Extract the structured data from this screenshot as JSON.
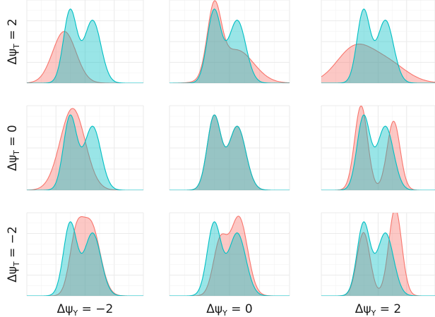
{
  "chart_data": {
    "type": "area",
    "layout": {
      "rows": 3,
      "cols": 3
    },
    "row_labels": [
      "ΔψT = 2",
      "ΔψT = 0",
      "ΔψT = −2"
    ],
    "row_label_parts": [
      {
        "pre": "Δψ",
        "sub": "T",
        "post": " = 2"
      },
      {
        "pre": "Δψ",
        "sub": "T",
        "post": " = 0"
      },
      {
        "pre": "Δψ",
        "sub": "T",
        "post": " = −2"
      }
    ],
    "col_labels": [
      "ΔψY = −2",
      "ΔψY = 0",
      "ΔψY = 2"
    ],
    "col_label_parts": [
      {
        "pre": "Δψ",
        "sub": "Y",
        "post": " = −2"
      },
      {
        "pre": "Δψ",
        "sub": "Y",
        "post": " = 0"
      },
      {
        "pre": "Δψ",
        "sub": "Y",
        "post": " = 2"
      }
    ],
    "colors": {
      "red": "#F8766D",
      "teal": "#00BFC4"
    },
    "fill_opacity": 0.4,
    "grid": true,
    "x_range": [
      -3.5,
      3.5
    ],
    "y_range": [
      0,
      0.55
    ],
    "panels": [
      {
        "row": 0,
        "col": 0,
        "series": [
          {
            "color": "red",
            "components": [
              [
                -1.25,
                0.7,
                0.6
              ]
            ]
          },
          {
            "color": "teal",
            "components": [
              [
                -0.9,
                0.4,
                0.48
              ],
              [
                0.45,
                0.5,
                0.52
              ]
            ]
          }
        ]
      },
      {
        "row": 0,
        "col": 1,
        "series": [
          {
            "color": "red",
            "components": [
              [
                -0.9,
                0.4,
                0.45
              ],
              [
                0.4,
                1.0,
                0.55
              ]
            ]
          },
          {
            "color": "teal",
            "components": [
              [
                -0.9,
                0.4,
                0.48
              ],
              [
                0.45,
                0.5,
                0.52
              ]
            ]
          }
        ]
      },
      {
        "row": 0,
        "col": 2,
        "series": [
          {
            "color": "red",
            "components": [
              [
                -1.5,
                1.1,
                0.6
              ],
              [
                0.5,
                1.2,
                0.4
              ]
            ]
          },
          {
            "color": "teal",
            "components": [
              [
                -0.9,
                0.4,
                0.48
              ],
              [
                0.45,
                0.5,
                0.52
              ]
            ]
          }
        ]
      },
      {
        "row": 1,
        "col": 0,
        "series": [
          {
            "color": "red",
            "components": [
              [
                -0.75,
                0.75,
                1.0
              ]
            ]
          },
          {
            "color": "teal",
            "components": [
              [
                -0.9,
                0.4,
                0.48
              ],
              [
                0.45,
                0.5,
                0.52
              ]
            ]
          }
        ]
      },
      {
        "row": 1,
        "col": 1,
        "series": [
          {
            "color": "red",
            "components": [
              [
                -0.9,
                0.4,
                0.48
              ],
              [
                0.45,
                0.5,
                0.52
              ]
            ]
          },
          {
            "color": "teal",
            "components": [
              [
                -0.9,
                0.4,
                0.48
              ],
              [
                0.45,
                0.5,
                0.52
              ]
            ]
          }
        ]
      },
      {
        "row": 1,
        "col": 2,
        "series": [
          {
            "color": "red",
            "components": [
              [
                -1.05,
                0.4,
                0.55
              ],
              [
                0.95,
                0.4,
                0.45
              ]
            ]
          },
          {
            "color": "teal",
            "components": [
              [
                -0.9,
                0.4,
                0.48
              ],
              [
                0.45,
                0.5,
                0.52
              ]
            ]
          }
        ]
      },
      {
        "row": 2,
        "col": 0,
        "series": [
          {
            "color": "red",
            "components": [
              [
                -0.55,
                0.4,
                0.35
              ],
              [
                0.35,
                0.55,
                0.65
              ]
            ]
          },
          {
            "color": "teal",
            "components": [
              [
                -0.9,
                0.4,
                0.48
              ],
              [
                0.45,
                0.5,
                0.52
              ]
            ]
          }
        ]
      },
      {
        "row": 2,
        "col": 1,
        "series": [
          {
            "color": "red",
            "components": [
              [
                -0.55,
                0.4,
                0.35
              ],
              [
                0.55,
                0.5,
                0.65
              ]
            ]
          },
          {
            "color": "teal",
            "components": [
              [
                -0.9,
                0.4,
                0.48
              ],
              [
                0.45,
                0.5,
                0.52
              ]
            ]
          }
        ]
      },
      {
        "row": 2,
        "col": 2,
        "series": [
          {
            "color": "red",
            "components": [
              [
                -0.9,
                0.4,
                0.42
              ],
              [
                1.05,
                0.4,
                0.58
              ]
            ]
          },
          {
            "color": "teal",
            "components": [
              [
                -0.9,
                0.4,
                0.48
              ],
              [
                0.45,
                0.5,
                0.52
              ]
            ]
          }
        ]
      }
    ]
  }
}
